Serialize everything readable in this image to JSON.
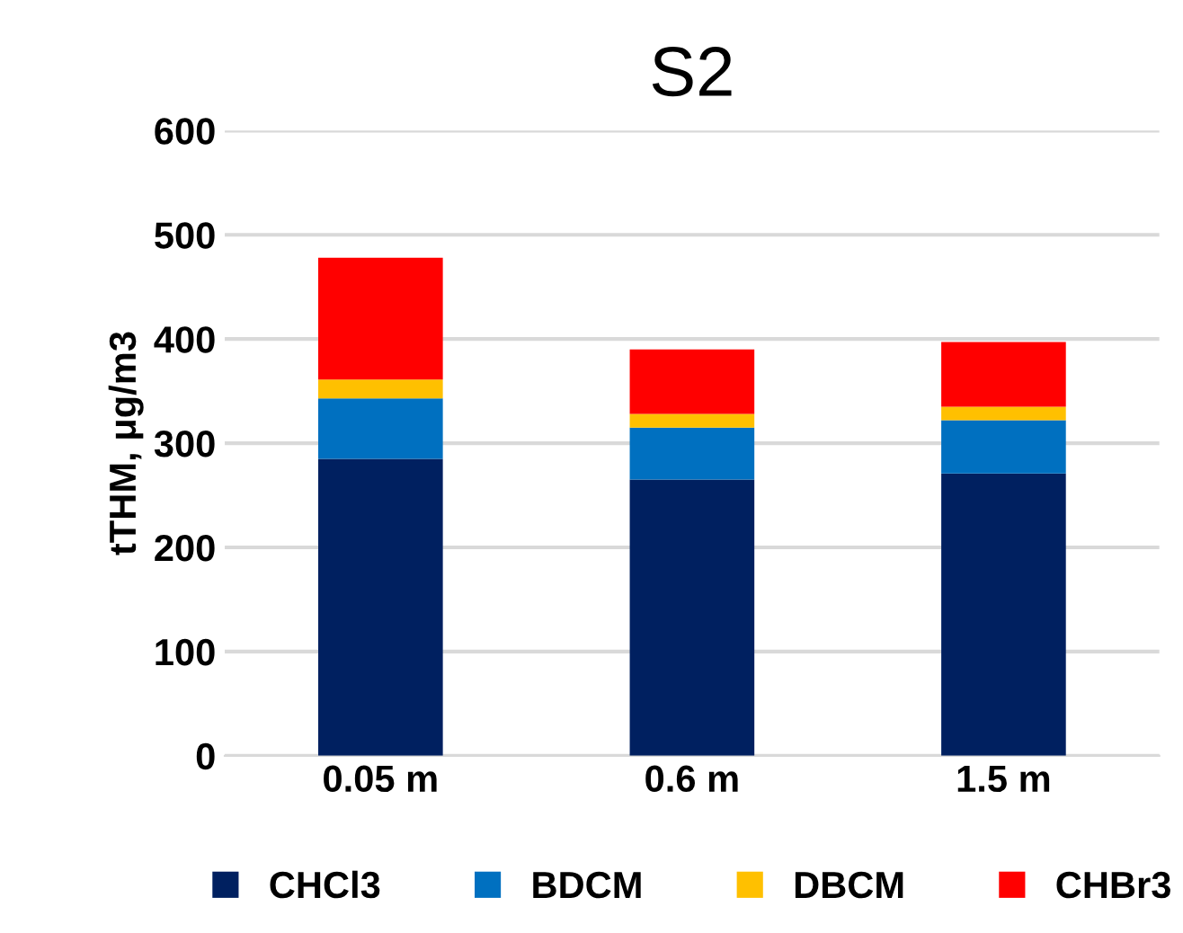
{
  "chart_data": {
    "type": "bar",
    "stacked": true,
    "title": "S2",
    "ylabel": "tTHM, μg/m3",
    "categories": [
      "0.05 m",
      "0.6 m",
      "1.5 m"
    ],
    "series": [
      {
        "name": "CHCl3",
        "color": "#002060",
        "values": [
          285,
          265,
          271
        ]
      },
      {
        "name": "BDCM",
        "color": "#0070c0",
        "values": [
          58,
          50,
          51
        ]
      },
      {
        "name": "DBCM",
        "color": "#ffc000",
        "values": [
          18,
          13,
          13
        ]
      },
      {
        "name": "CHBr3",
        "color": "#ff0000",
        "values": [
          117,
          62,
          62
        ]
      }
    ],
    "ylim": [
      0,
      600
    ],
    "yticks": [
      0,
      100,
      200,
      300,
      400,
      500,
      600
    ],
    "grid": "y",
    "legend": "bottom"
  }
}
